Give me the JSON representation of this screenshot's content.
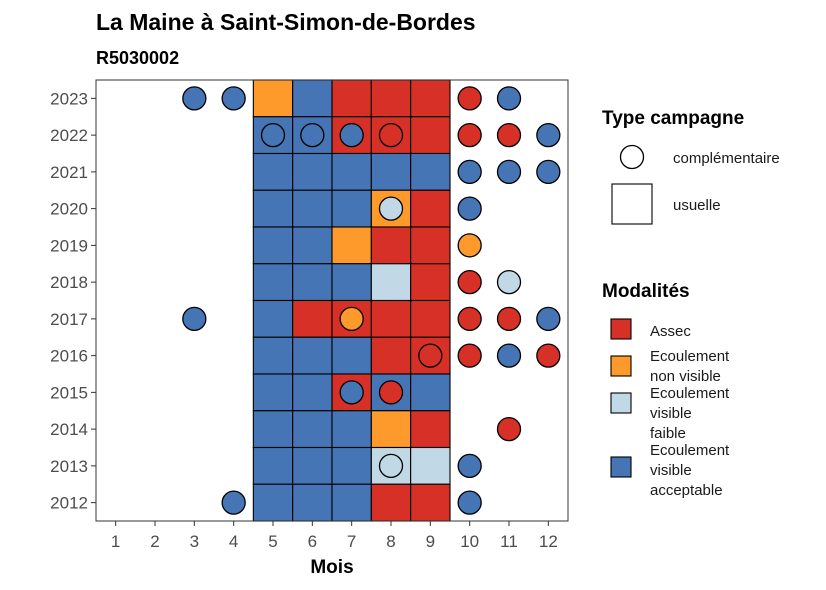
{
  "chart_data": {
    "type": "heatmap",
    "title": "La Maine à Saint-Simon-de-Bordes",
    "subtitle": "R5030002",
    "xlabel": "Mois",
    "ylabel": "",
    "x_ticks": [
      "1",
      "2",
      "3",
      "4",
      "5",
      "6",
      "7",
      "8",
      "9",
      "10",
      "11",
      "12"
    ],
    "y_ticks": [
      "2012",
      "2013",
      "2014",
      "2015",
      "2016",
      "2017",
      "2018",
      "2019",
      "2020",
      "2021",
      "2022",
      "2023"
    ],
    "xlim": [
      0.5,
      12.5
    ],
    "ylim": [
      2011.5,
      2023.5
    ],
    "grid": false,
    "colors": {
      "assec": "#d73027",
      "non_visible": "#fd9a2b",
      "faible": "#c1d8e6",
      "acceptable": "#4575b4"
    },
    "legend_type": {
      "title": "Type campagne",
      "items": [
        {
          "shape": "circle",
          "label": "complémentaire"
        },
        {
          "shape": "square",
          "label": "usuelle"
        }
      ]
    },
    "legend_modalites": {
      "title": "Modalités",
      "items": [
        {
          "key": "assec",
          "lines": [
            "Assec"
          ]
        },
        {
          "key": "non_visible",
          "lines": [
            "Ecoulement",
            "non visible"
          ]
        },
        {
          "key": "faible",
          "lines": [
            "Ecoulement",
            "visible",
            "faible"
          ]
        },
        {
          "key": "acceptable",
          "lines": [
            "Ecoulement",
            "visible",
            "acceptable"
          ]
        }
      ]
    },
    "usuelle": [
      {
        "year": 2023,
        "month": 5,
        "v": "non_visible"
      },
      {
        "year": 2023,
        "month": 6,
        "v": "acceptable"
      },
      {
        "year": 2023,
        "month": 7,
        "v": "assec"
      },
      {
        "year": 2023,
        "month": 8,
        "v": "assec"
      },
      {
        "year": 2023,
        "month": 9,
        "v": "assec"
      },
      {
        "year": 2022,
        "month": 5,
        "v": "acceptable"
      },
      {
        "year": 2022,
        "month": 6,
        "v": "acceptable"
      },
      {
        "year": 2022,
        "month": 7,
        "v": "assec"
      },
      {
        "year": 2022,
        "month": 8,
        "v": "assec"
      },
      {
        "year": 2022,
        "month": 9,
        "v": "assec"
      },
      {
        "year": 2021,
        "month": 5,
        "v": "acceptable"
      },
      {
        "year": 2021,
        "month": 6,
        "v": "acceptable"
      },
      {
        "year": 2021,
        "month": 7,
        "v": "acceptable"
      },
      {
        "year": 2021,
        "month": 8,
        "v": "acceptable"
      },
      {
        "year": 2021,
        "month": 9,
        "v": "acceptable"
      },
      {
        "year": 2020,
        "month": 5,
        "v": "acceptable"
      },
      {
        "year": 2020,
        "month": 6,
        "v": "acceptable"
      },
      {
        "year": 2020,
        "month": 7,
        "v": "acceptable"
      },
      {
        "year": 2020,
        "month": 8,
        "v": "non_visible"
      },
      {
        "year": 2020,
        "month": 9,
        "v": "assec"
      },
      {
        "year": 2019,
        "month": 5,
        "v": "acceptable"
      },
      {
        "year": 2019,
        "month": 6,
        "v": "acceptable"
      },
      {
        "year": 2019,
        "month": 7,
        "v": "non_visible"
      },
      {
        "year": 2019,
        "month": 8,
        "v": "assec"
      },
      {
        "year": 2019,
        "month": 9,
        "v": "assec"
      },
      {
        "year": 2018,
        "month": 5,
        "v": "acceptable"
      },
      {
        "year": 2018,
        "month": 6,
        "v": "acceptable"
      },
      {
        "year": 2018,
        "month": 7,
        "v": "acceptable"
      },
      {
        "year": 2018,
        "month": 8,
        "v": "faible"
      },
      {
        "year": 2018,
        "month": 9,
        "v": "assec"
      },
      {
        "year": 2017,
        "month": 5,
        "v": "acceptable"
      },
      {
        "year": 2017,
        "month": 6,
        "v": "assec"
      },
      {
        "year": 2017,
        "month": 7,
        "v": "assec"
      },
      {
        "year": 2017,
        "month": 8,
        "v": "assec"
      },
      {
        "year": 2017,
        "month": 9,
        "v": "assec"
      },
      {
        "year": 2016,
        "month": 5,
        "v": "acceptable"
      },
      {
        "year": 2016,
        "month": 6,
        "v": "acceptable"
      },
      {
        "year": 2016,
        "month": 7,
        "v": "acceptable"
      },
      {
        "year": 2016,
        "month": 8,
        "v": "assec"
      },
      {
        "year": 2016,
        "month": 9,
        "v": "assec"
      },
      {
        "year": 2015,
        "month": 5,
        "v": "acceptable"
      },
      {
        "year": 2015,
        "month": 6,
        "v": "acceptable"
      },
      {
        "year": 2015,
        "month": 7,
        "v": "assec"
      },
      {
        "year": 2015,
        "month": 8,
        "v": "acceptable"
      },
      {
        "year": 2015,
        "month": 9,
        "v": "acceptable"
      },
      {
        "year": 2014,
        "month": 5,
        "v": "acceptable"
      },
      {
        "year": 2014,
        "month": 6,
        "v": "acceptable"
      },
      {
        "year": 2014,
        "month": 7,
        "v": "acceptable"
      },
      {
        "year": 2014,
        "month": 8,
        "v": "non_visible"
      },
      {
        "year": 2014,
        "month": 9,
        "v": "assec"
      },
      {
        "year": 2013,
        "month": 5,
        "v": "acceptable"
      },
      {
        "year": 2013,
        "month": 6,
        "v": "acceptable"
      },
      {
        "year": 2013,
        "month": 7,
        "v": "acceptable"
      },
      {
        "year": 2013,
        "month": 8,
        "v": "faible"
      },
      {
        "year": 2013,
        "month": 9,
        "v": "faible"
      },
      {
        "year": 2012,
        "month": 5,
        "v": "acceptable"
      },
      {
        "year": 2012,
        "month": 6,
        "v": "acceptable"
      },
      {
        "year": 2012,
        "month": 7,
        "v": "acceptable"
      },
      {
        "year": 2012,
        "month": 8,
        "v": "assec"
      },
      {
        "year": 2012,
        "month": 9,
        "v": "assec"
      }
    ],
    "complementaire": [
      {
        "year": 2023,
        "month": 3,
        "v": "acceptable"
      },
      {
        "year": 2023,
        "month": 4,
        "v": "acceptable"
      },
      {
        "year": 2023,
        "month": 10,
        "v": "assec"
      },
      {
        "year": 2023,
        "month": 11,
        "v": "acceptable"
      },
      {
        "year": 2022,
        "month": 5,
        "v": "acceptable"
      },
      {
        "year": 2022,
        "month": 6,
        "v": "acceptable"
      },
      {
        "year": 2022,
        "month": 7,
        "v": "acceptable"
      },
      {
        "year": 2022,
        "month": 8,
        "v": "assec"
      },
      {
        "year": 2022,
        "month": 10,
        "v": "assec"
      },
      {
        "year": 2022,
        "month": 11,
        "v": "assec"
      },
      {
        "year": 2022,
        "month": 12,
        "v": "acceptable"
      },
      {
        "year": 2021,
        "month": 10,
        "v": "acceptable"
      },
      {
        "year": 2021,
        "month": 11,
        "v": "acceptable"
      },
      {
        "year": 2021,
        "month": 12,
        "v": "acceptable"
      },
      {
        "year": 2020,
        "month": 8,
        "v": "faible"
      },
      {
        "year": 2020,
        "month": 10,
        "v": "acceptable"
      },
      {
        "year": 2019,
        "month": 10,
        "v": "non_visible"
      },
      {
        "year": 2018,
        "month": 10,
        "v": "assec"
      },
      {
        "year": 2018,
        "month": 11,
        "v": "faible"
      },
      {
        "year": 2017,
        "month": 3,
        "v": "acceptable"
      },
      {
        "year": 2017,
        "month": 7,
        "v": "non_visible"
      },
      {
        "year": 2017,
        "month": 10,
        "v": "assec"
      },
      {
        "year": 2017,
        "month": 11,
        "v": "assec"
      },
      {
        "year": 2017,
        "month": 12,
        "v": "acceptable"
      },
      {
        "year": 2016,
        "month": 9,
        "v": "assec"
      },
      {
        "year": 2016,
        "month": 10,
        "v": "assec"
      },
      {
        "year": 2016,
        "month": 11,
        "v": "acceptable"
      },
      {
        "year": 2016,
        "month": 12,
        "v": "assec"
      },
      {
        "year": 2015,
        "month": 7,
        "v": "acceptable"
      },
      {
        "year": 2015,
        "month": 8,
        "v": "assec"
      },
      {
        "year": 2014,
        "month": 11,
        "v": "assec"
      },
      {
        "year": 2013,
        "month": 8,
        "v": "faible"
      },
      {
        "year": 2013,
        "month": 10,
        "v": "acceptable"
      },
      {
        "year": 2012,
        "month": 4,
        "v": "acceptable"
      },
      {
        "year": 2012,
        "month": 10,
        "v": "acceptable"
      }
    ]
  }
}
